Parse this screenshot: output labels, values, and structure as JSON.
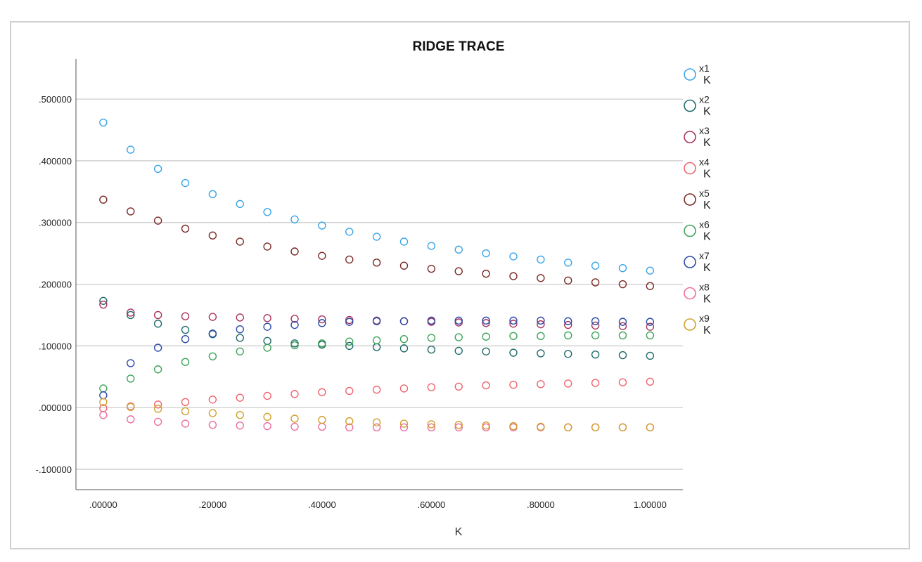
{
  "chart_data": {
    "type": "scatter",
    "title": "RIDGE TRACE",
    "xlabel": "K",
    "ylabel": "",
    "xlim": [
      -0.05,
      1.06
    ],
    "ylim": [
      -0.133,
      0.565
    ],
    "x_ticks": [
      0,
      0.2,
      0.4,
      0.6,
      0.8,
      1.0
    ],
    "x_tick_labels": [
      ".00000",
      ".20000",
      ".40000",
      ".60000",
      ".80000",
      "1.00000"
    ],
    "y_ticks": [
      -0.1,
      0,
      0.1,
      0.2,
      0.3,
      0.4,
      0.5
    ],
    "y_tick_labels": [
      "-.100000",
      ".000000",
      ".100000",
      ".200000",
      ".300000",
      ".400000",
      ".500000"
    ],
    "grid": "horizontal",
    "legend_position": "right",
    "x": [
      0,
      0.05,
      0.1,
      0.15,
      0.2,
      0.25,
      0.3,
      0.35,
      0.4,
      0.45,
      0.5,
      0.55,
      0.6,
      0.65,
      0.7,
      0.75,
      0.8,
      0.85,
      0.9,
      0.95,
      1.0
    ],
    "series": [
      {
        "name": "x1",
        "sublabel": "K",
        "color": "#3ba5e6",
        "values": [
          0.462,
          0.418,
          0.387,
          0.364,
          0.346,
          0.33,
          0.317,
          0.305,
          0.295,
          0.285,
          0.277,
          0.269,
          0.262,
          0.256,
          0.25,
          0.245,
          0.24,
          0.235,
          0.23,
          0.226,
          0.222
        ]
      },
      {
        "name": "x2",
        "sublabel": "K",
        "color": "#1f6b6b",
        "values": [
          0.173,
          0.15,
          0.136,
          0.126,
          0.119,
          0.113,
          0.108,
          0.104,
          0.102,
          0.1,
          0.098,
          0.096,
          0.094,
          0.092,
          0.091,
          0.089,
          0.088,
          0.087,
          0.086,
          0.085,
          0.084
        ]
      },
      {
        "name": "x3",
        "sublabel": "K",
        "color": "#a8325e",
        "values": [
          0.167,
          0.154,
          0.15,
          0.148,
          0.147,
          0.146,
          0.145,
          0.144,
          0.143,
          0.142,
          0.141,
          0.14,
          0.139,
          0.138,
          0.137,
          0.136,
          0.135,
          0.134,
          0.133,
          0.132,
          0.131
        ]
      },
      {
        "name": "x4",
        "sublabel": "K",
        "color": "#f0646e",
        "values": [
          -0.001,
          0.002,
          0.005,
          0.009,
          0.013,
          0.016,
          0.019,
          0.022,
          0.025,
          0.027,
          0.029,
          0.031,
          0.033,
          0.034,
          0.036,
          0.037,
          0.038,
          0.039,
          0.04,
          0.041,
          0.042
        ]
      },
      {
        "name": "x5",
        "sublabel": "K",
        "color": "#7a2a26",
        "values": [
          0.337,
          0.318,
          0.303,
          0.29,
          0.279,
          0.269,
          0.261,
          0.253,
          0.246,
          0.24,
          0.235,
          0.23,
          0.225,
          0.221,
          0.217,
          0.213,
          0.21,
          0.206,
          0.203,
          0.2,
          0.197
        ]
      },
      {
        "name": "x6",
        "sublabel": "K",
        "color": "#3fa35a",
        "values": [
          0.031,
          0.047,
          0.062,
          0.074,
          0.083,
          0.091,
          0.097,
          0.101,
          0.104,
          0.107,
          0.109,
          0.111,
          0.113,
          0.114,
          0.115,
          0.116,
          0.116,
          0.117,
          0.117,
          0.117,
          0.117
        ]
      },
      {
        "name": "x7",
        "sublabel": "K",
        "color": "#2c4aa8",
        "values": [
          0.02,
          0.072,
          0.097,
          0.111,
          0.12,
          0.127,
          0.131,
          0.134,
          0.137,
          0.139,
          0.14,
          0.14,
          0.141,
          0.141,
          0.141,
          0.141,
          0.141,
          0.14,
          0.14,
          0.139,
          0.139
        ]
      },
      {
        "name": "x8",
        "sublabel": "K",
        "color": "#ec6ea0",
        "values": [
          -0.012,
          -0.019,
          -0.023,
          -0.026,
          -0.028,
          -0.029,
          -0.03,
          -0.031,
          -0.031,
          -0.032,
          -0.032,
          -0.032,
          -0.032,
          -0.032,
          -0.032,
          -0.032,
          -0.032,
          -0.032,
          -0.032,
          -0.032,
          -0.032
        ]
      },
      {
        "name": "x9",
        "sublabel": "K",
        "color": "#d1a02e",
        "values": [
          0.009,
          0.001,
          -0.002,
          -0.006,
          -0.009,
          -0.012,
          -0.015,
          -0.018,
          -0.02,
          -0.022,
          -0.024,
          -0.026,
          -0.027,
          -0.028,
          -0.029,
          -0.03,
          -0.031,
          -0.032,
          -0.032,
          -0.032,
          -0.032
        ]
      }
    ]
  }
}
